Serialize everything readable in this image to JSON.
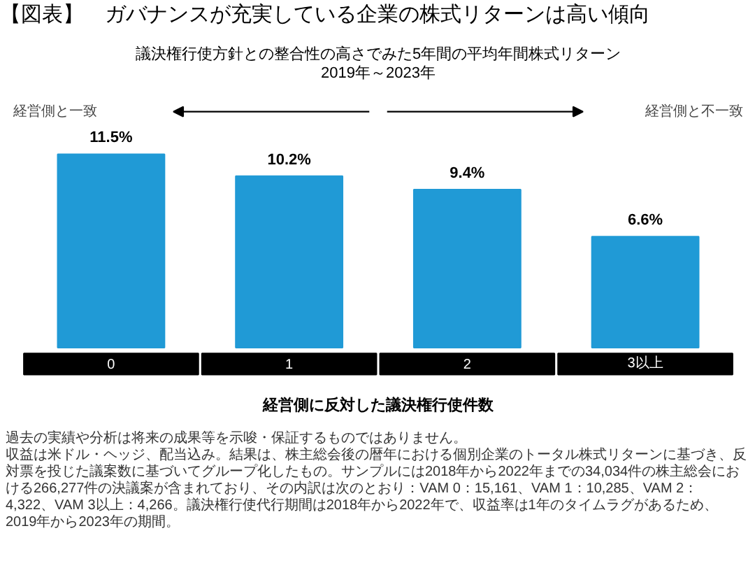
{
  "chart_data": {
    "type": "bar",
    "title": "【図表】　ガバナンスが充実している企業の株式リターンは高い傾向",
    "subtitle": "議決権行使方針との整合性の高さでみた5年間の平均年間株式リターン\n2019年～2023年",
    "xlabel": "経営側に反対した議決権行使件数",
    "categories": [
      "0",
      "1",
      "2",
      "3以上"
    ],
    "values": [
      11.5,
      10.2,
      9.4,
      6.6
    ],
    "value_labels": [
      "11.5%",
      "10.2%",
      "9.4%",
      "6.6%"
    ],
    "color": "#209ad6",
    "grid": false,
    "annotations": [
      "経営側と一致",
      "経営側と不一致",
      "過去の実績や分析は将来の成果等を示唆・保証するものではありません。",
      "収益は米ドル・ヘッジ、配当込み。結果は、株主総会後の暦年における個別企業のトータル株式リターンに基づき、反対票を投じた議案数に基づいてグループ化したもの。サンプルには2018年から2022年までの34,034件の株主総会における266,277件の決議案が含まれており、その内訳は次のとおり：VAM 0：15,161、VAM 1：10,285、VAM 2：4,322、VAM 3以上：4,266。議決権行使代行期間は2018年から2022年で、収益率は1年のタイムラグがあるため、2019年から2023年の期間。"
    ]
  }
}
